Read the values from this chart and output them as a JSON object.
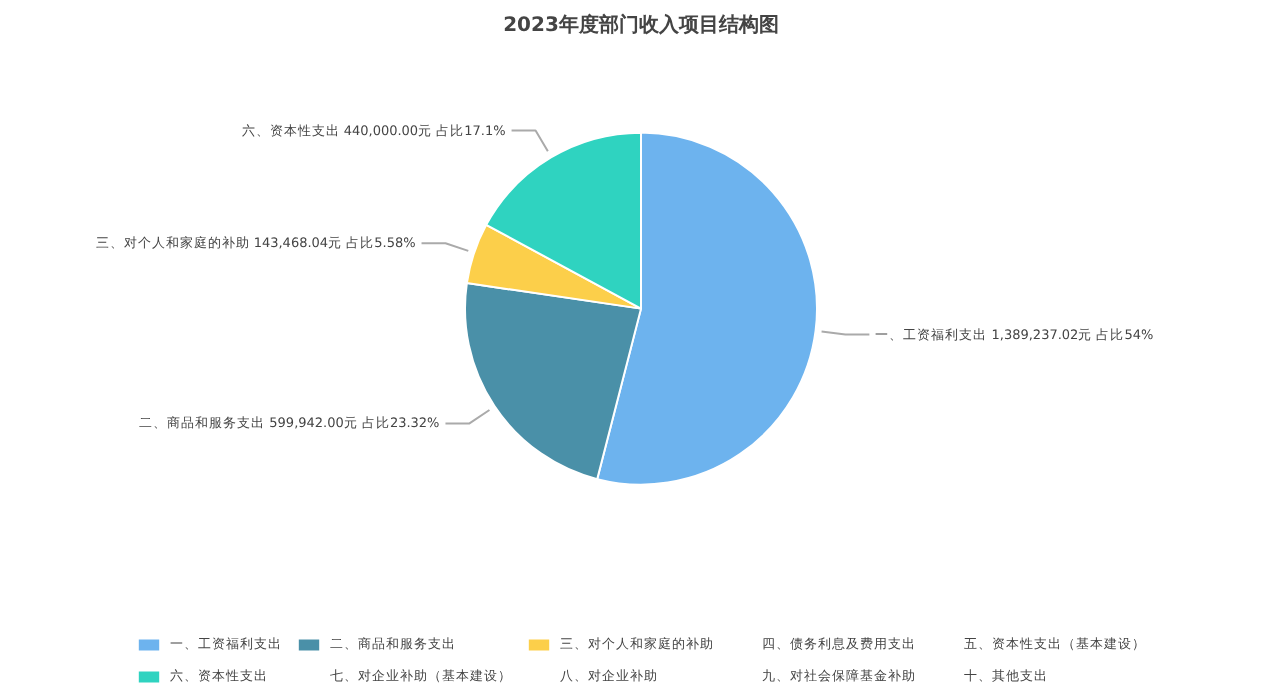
{
  "chart_data": {
    "type": "pie",
    "title": "2023年度部门收入项目结构图",
    "categories": [
      "一、工资福利支出",
      "二、商品和服务支出",
      "三、对个人和家庭的补助",
      "四、债务利息及费用支出",
      "五、资本性支出（基本建设）",
      "六、资本性支出",
      "七、对企业补助（基本建设）",
      "八、对企业补助",
      "九、对社会保障基金补助",
      "十、其他支出"
    ],
    "values": [
      1389237.02,
      599942.0,
      143468.04,
      0,
      0,
      440000.0,
      0,
      0,
      0,
      0
    ],
    "colors": [
      "#6db3ee",
      "#4a90a8",
      "#fccf4a",
      "#3cc8d0",
      "#f5a88c",
      "#2fd3c0",
      "#5b6cf0",
      "#a27cf0",
      "#f06b78",
      "#c6df78"
    ],
    "value_labels": [
      "一、工资福利支出 1,389,237.02元 占比54%",
      "二、商品和服务支出 599,942.00元 占比23.32%",
      "三、对个人和家庭的补助 143,468.04元 占比5.58%",
      null,
      null,
      "六、资本性支出 440,000.00元 占比17.1%",
      null,
      null,
      null,
      null
    ],
    "legend": "bottom"
  }
}
